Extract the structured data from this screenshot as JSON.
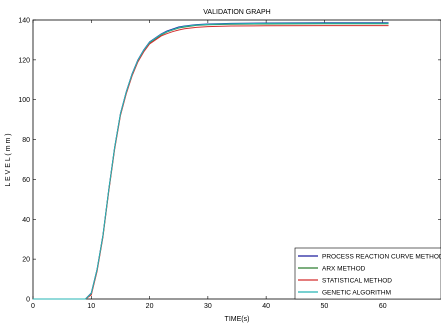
{
  "chart_data": {
    "type": "line",
    "title": "VALIDATION GRAPH",
    "xlabel": "TIME(s)",
    "ylabel": "L E V E L ( m m )",
    "xlim": [
      0,
      70
    ],
    "ylim": [
      0,
      140
    ],
    "xticks": [
      0,
      10,
      20,
      30,
      40,
      50,
      60
    ],
    "yticks": [
      0,
      20,
      40,
      60,
      80,
      100,
      120,
      140
    ],
    "grid": false,
    "legend_position": "bottom-right",
    "series": [
      {
        "name": "PROCESS REACTION CURVE METHOD",
        "color": "#1f1f9e",
        "x": [
          0,
          2,
          9,
          10,
          11,
          12,
          13,
          14,
          15,
          16,
          17,
          18,
          19,
          20,
          21,
          22,
          23,
          24,
          25,
          26,
          28,
          30,
          34,
          40,
          50,
          61
        ],
        "y": [
          0,
          0,
          0,
          3,
          15,
          32,
          55,
          76,
          93,
          104,
          113,
          120,
          125,
          129,
          131,
          133,
          134.5,
          135.5,
          136.5,
          137,
          137.7,
          138,
          138.3,
          138.5,
          138.6,
          138.6
        ]
      },
      {
        "name": "ARX METHOD",
        "color": "#2e7d32",
        "x": [
          0,
          2,
          9,
          10,
          11,
          12,
          13,
          14,
          15,
          16,
          17,
          18,
          19,
          20,
          21,
          22,
          23,
          24,
          25,
          26,
          28,
          30,
          34,
          40,
          50,
          61
        ],
        "y": [
          0,
          0,
          0,
          2.5,
          14.5,
          31.5,
          54.5,
          75.5,
          92.5,
          103.5,
          112.5,
          119.5,
          124.5,
          128.5,
          130.5,
          132.5,
          134,
          135,
          136,
          136.5,
          137.3,
          137.6,
          137.9,
          138,
          138.1,
          138.1
        ]
      },
      {
        "name": "STATISTICAL METHOD",
        "color": "#d32f2f",
        "x": [
          0,
          2,
          9,
          10,
          11,
          12,
          13,
          14,
          15,
          16,
          17,
          18,
          19,
          20,
          21,
          22,
          23,
          24,
          25,
          26,
          28,
          30,
          34,
          40,
          50,
          61
        ],
        "y": [
          0,
          0,
          0,
          2,
          14,
          31,
          54,
          75,
          92,
          103,
          112,
          119,
          124,
          128,
          130,
          132,
          133.2,
          134.2,
          135,
          135.6,
          136.3,
          136.7,
          137,
          137.1,
          137.2,
          137.2
        ]
      },
      {
        "name": "GENETIC ALGORITHM",
        "color": "#26b5b5",
        "x": [
          0,
          2,
          9,
          10,
          11,
          12,
          13,
          14,
          15,
          16,
          17,
          18,
          19,
          20,
          21,
          22,
          23,
          24,
          25,
          26,
          28,
          30,
          34,
          40,
          50,
          61
        ],
        "y": [
          0,
          0,
          0,
          2.8,
          14.8,
          31.8,
          54.8,
          75.8,
          92.8,
          103.8,
          112.8,
          119.8,
          124.8,
          128.8,
          130.8,
          132.8,
          134.2,
          135.2,
          136.2,
          136.8,
          137.5,
          137.8,
          138.1,
          138.3,
          138.4,
          138.4
        ]
      }
    ]
  }
}
